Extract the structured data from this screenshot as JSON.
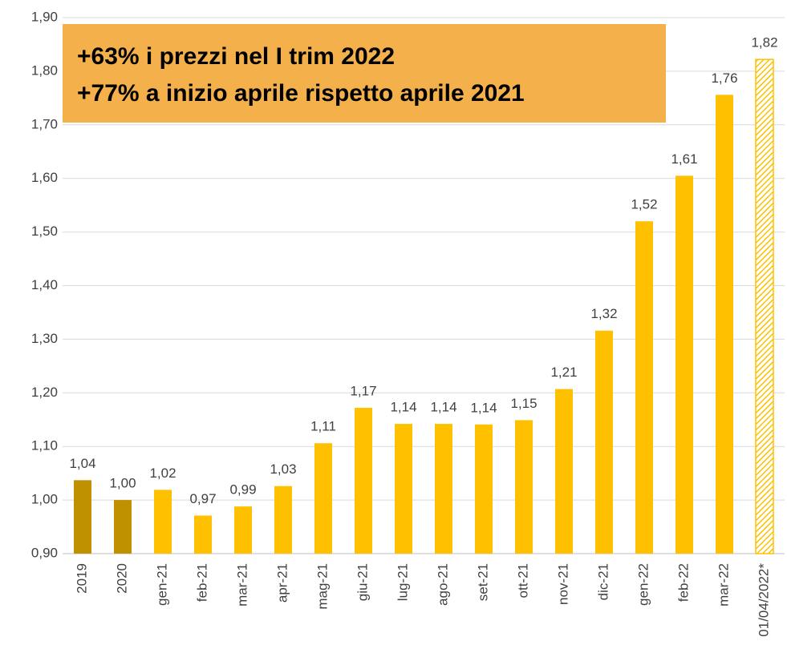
{
  "chart_data": {
    "type": "bar",
    "categories": [
      "2019",
      "2020",
      "gen-21",
      "feb-21",
      "mar-21",
      "apr-21",
      "mag-21",
      "giu-21",
      "lug-21",
      "ago-21",
      "set-21",
      "ott-21",
      "nov-21",
      "dic-21",
      "gen-22",
      "feb-22",
      "mar-22",
      "01/04/2022*"
    ],
    "values": [
      1.037,
      1.0,
      1.019,
      0.971,
      0.988,
      1.026,
      1.106,
      1.172,
      1.142,
      1.142,
      1.141,
      1.149,
      1.207,
      1.316,
      1.52,
      1.605,
      1.756,
      1.822
    ],
    "value_labels": [
      "1,04",
      "1,00",
      "1,02",
      "0,97",
      "0,99",
      "1,03",
      "1,11",
      "1,17",
      "1,14",
      "1,14",
      "1,14",
      "1,15",
      "1,21",
      "1,32",
      "1,52",
      "1,61",
      "1,76",
      "1,82"
    ],
    "colors": [
      "#bf9000",
      "#bf9000",
      "#ffc000",
      "#ffc000",
      "#ffc000",
      "#ffc000",
      "#ffc000",
      "#ffc000",
      "#ffc000",
      "#ffc000",
      "#ffc000",
      "#ffc000",
      "#ffc000",
      "#ffc000",
      "#ffc000",
      "#ffc000",
      "#ffc000",
      "#ffc000"
    ],
    "hatched": [
      false,
      false,
      false,
      false,
      false,
      false,
      false,
      false,
      false,
      false,
      false,
      false,
      false,
      false,
      false,
      false,
      false,
      true
    ],
    "ylim": [
      0.9,
      1.9
    ],
    "yticks": [
      {
        "value": 0.9,
        "label": "0,90"
      },
      {
        "value": 1.0,
        "label": "1,00"
      },
      {
        "value": 1.1,
        "label": "1,10"
      },
      {
        "value": 1.2,
        "label": "1,20"
      },
      {
        "value": 1.3,
        "label": "1,30"
      },
      {
        "value": 1.4,
        "label": "1,40"
      },
      {
        "value": 1.5,
        "label": "1,50"
      },
      {
        "value": 1.6,
        "label": "1,60"
      },
      {
        "value": 1.7,
        "label": "1,70"
      },
      {
        "value": 1.8,
        "label": "1,80"
      },
      {
        "value": 1.9,
        "label": "1,90"
      }
    ],
    "grid": true,
    "annotation": [
      "+63% i prezzi nel I trim 2022",
      "+77% a inizio aprile rispetto aprile 2021"
    ],
    "annotation_color": "#f4b04a"
  }
}
